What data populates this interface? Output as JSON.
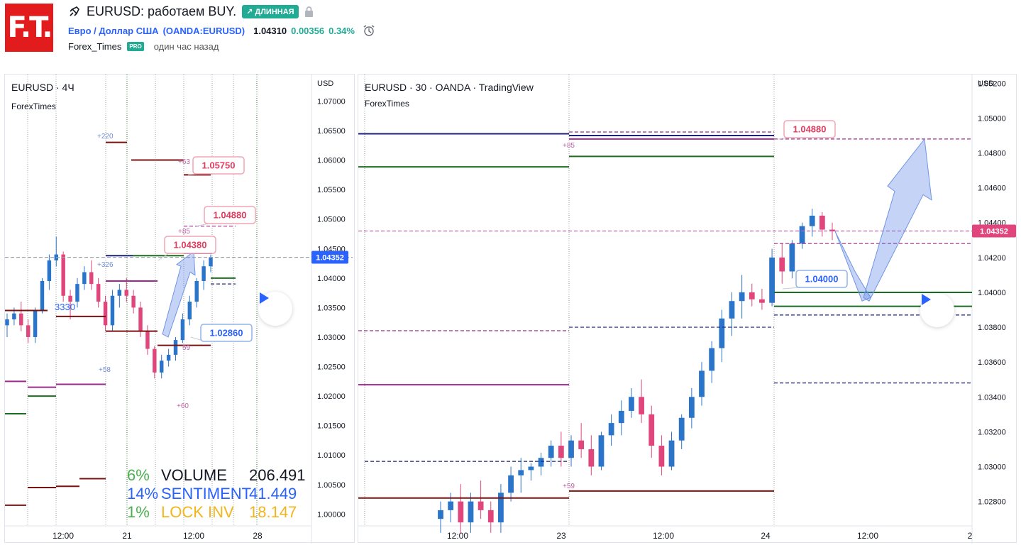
{
  "header": {
    "logo_text": "F.T.",
    "title": "EURUSD: работаем BUY.",
    "direction_badge": "↗ ДЛИННАЯ",
    "symbol_desc": "Евро / Доллар США",
    "symbol_code": "(OANDA:EURUSD)",
    "last_price": "1.04310",
    "change_abs": "0.00356",
    "change_pct": "0.34%",
    "author": "Forex_Times",
    "author_badge": "PRO",
    "published": "один час назад"
  },
  "colors": {
    "up": "#2a74c9",
    "down": "#e0457b",
    "accent_green": "#22ab94",
    "level_navy": "#1a237e",
    "level_green": "#1b6e20",
    "level_maroon": "#7a1010",
    "level_purple": "#9c2a8a",
    "label_red": "#e03d5f",
    "label_blue": "#2962ff",
    "price_tag": "#2962ff",
    "price_tag_right": "#e0457b"
  },
  "left_chart": {
    "title": "EURUSD · 4Ч",
    "subtitle": "ForexTimes",
    "currency": "USD",
    "price_axis": [
      "1.07000",
      "1.06500",
      "1.06000",
      "1.05500",
      "1.05000",
      "1.04500",
      "1.04000",
      "1.03500",
      "1.03000",
      "1.02500",
      "1.02000",
      "1.01500",
      "1.01000",
      "1.00500",
      "1.00000"
    ],
    "time_axis": [
      "12:00",
      "21",
      "12:00",
      "28"
    ],
    "current_price_tag": "1.04352",
    "price_labels": [
      "1.05750",
      "1.04880",
      "1.04380",
      "1.02860"
    ],
    "small_labels": [
      "+220",
      "+63",
      "+85",
      "+326",
      "+58",
      "59",
      "+60",
      "3330"
    ],
    "stats": [
      {
        "pct": "6%",
        "name": "VOLUME",
        "value": "206.491",
        "color": "#4caf50",
        "name_color": "#131722",
        "value_color": "#131722"
      },
      {
        "pct": "14%",
        "name": "SENTIMENT",
        "value": "41.449",
        "color": "#2962ff",
        "name_color": "#2962ff",
        "value_color": "#2962ff"
      },
      {
        "pct": "1%",
        "name": "LOCK INV",
        "value": "18.147",
        "color": "#4caf50",
        "name_color": "#f2b51b",
        "value_color": "#f2b51b"
      }
    ]
  },
  "right_chart": {
    "title": "EURUSD · 30 · OANDA · TradingView",
    "subtitle": "ForexTimes",
    "currency": "USD",
    "price_axis": [
      "1.05200",
      "1.05000",
      "1.04800",
      "1.04600",
      "1.04400",
      "1.04200",
      "1.04000",
      "1.03800",
      "1.03600",
      "1.03400",
      "1.03200",
      "1.03000",
      "1.02800"
    ],
    "time_axis": [
      "12:00",
      "23",
      "12:00",
      "24",
      "12:00",
      "2"
    ],
    "current_price_tag": "1.04352",
    "price_labels": [
      "1.04880",
      "1.04000"
    ],
    "small_labels": [
      "+85",
      "+59"
    ]
  },
  "chart_data": [
    {
      "type": "candlestick",
      "title": "EURUSD · 4Ч",
      "ylim": [
        0.998,
        1.0745
      ],
      "x_ticks": [
        "12:00",
        "21",
        "12:00",
        "28"
      ],
      "levels": [
        1.0575,
        1.0488,
        1.0438,
        1.0286,
        1.04352
      ],
      "ohlc": [
        [
          1.032,
          1.034,
          1.03,
          1.033
        ],
        [
          1.033,
          1.035,
          1.032,
          1.034
        ],
        [
          1.034,
          1.036,
          1.031,
          1.032
        ],
        [
          1.032,
          1.033,
          1.029,
          1.03
        ],
        [
          1.03,
          1.035,
          1.029,
          1.0345
        ],
        [
          1.0345,
          1.04,
          1.034,
          1.0395
        ],
        [
          1.0395,
          1.044,
          1.038,
          1.043
        ],
        [
          1.043,
          1.047,
          1.042,
          1.044
        ],
        [
          1.044,
          1.0445,
          1.036,
          1.037
        ],
        [
          1.037,
          1.038,
          1.033,
          1.036
        ],
        [
          1.036,
          1.04,
          1.035,
          1.039
        ],
        [
          1.039,
          1.042,
          1.038,
          1.041
        ],
        [
          1.041,
          1.043,
          1.038,
          1.039
        ],
        [
          1.039,
          1.04,
          1.035,
          1.036
        ],
        [
          1.036,
          1.037,
          1.031,
          1.032
        ],
        [
          1.032,
          1.038,
          1.031,
          1.037
        ],
        [
          1.037,
          1.039,
          1.035,
          1.038
        ],
        [
          1.038,
          1.04,
          1.036,
          1.037
        ],
        [
          1.037,
          1.038,
          1.034,
          1.035
        ],
        [
          1.035,
          1.036,
          1.03,
          1.031
        ],
        [
          1.031,
          1.032,
          1.027,
          1.028
        ],
        [
          1.028,
          1.0285,
          1.023,
          1.024
        ],
        [
          1.024,
          1.027,
          1.023,
          1.026
        ],
        [
          1.026,
          1.028,
          1.025,
          1.027
        ],
        [
          1.027,
          1.03,
          1.026,
          1.0295
        ],
        [
          1.0295,
          1.034,
          1.029,
          1.033
        ],
        [
          1.033,
          1.037,
          1.032,
          1.036
        ],
        [
          1.036,
          1.04,
          1.035,
          1.0395
        ],
        [
          1.0395,
          1.043,
          1.038,
          1.042
        ],
        [
          1.042,
          1.044,
          1.041,
          1.0435
        ]
      ]
    },
    {
      "type": "candlestick",
      "title": "EURUSD · 30 · OANDA · TradingView",
      "ylim": [
        1.0266,
        1.0525
      ],
      "x_ticks": [
        "12:00",
        "23",
        "12:00",
        "24",
        "12:00",
        "2"
      ],
      "levels": [
        1.0488,
        1.04,
        1.04352
      ],
      "ohlc": [
        [
          1.027,
          1.028,
          1.0262,
          1.0275
        ],
        [
          1.0275,
          1.0285,
          1.0268,
          1.028
        ],
        [
          1.028,
          1.029,
          1.0262,
          1.0268
        ],
        [
          1.0268,
          1.0285,
          1.0262,
          1.028
        ],
        [
          1.028,
          1.0292,
          1.027,
          1.0275
        ],
        [
          1.0275,
          1.028,
          1.0262,
          1.0268
        ],
        [
          1.0268,
          1.029,
          1.0262,
          1.0285
        ],
        [
          1.0285,
          1.03,
          1.028,
          1.0295
        ],
        [
          1.0295,
          1.0305,
          1.0285,
          1.0298
        ],
        [
          1.0298,
          1.0302,
          1.0292,
          1.03
        ],
        [
          1.03,
          1.0308,
          1.0295,
          1.0305
        ],
        [
          1.0305,
          1.0315,
          1.03,
          1.0312
        ],
        [
          1.0312,
          1.032,
          1.03,
          1.0305
        ],
        [
          1.0305,
          1.0318,
          1.03,
          1.0315
        ],
        [
          1.0315,
          1.0325,
          1.0305,
          1.031
        ],
        [
          1.031,
          1.0318,
          1.0295,
          1.03
        ],
        [
          1.03,
          1.032,
          1.0298,
          1.0318
        ],
        [
          1.0318,
          1.033,
          1.0312,
          1.0325
        ],
        [
          1.0325,
          1.0338,
          1.0318,
          1.0332
        ],
        [
          1.0332,
          1.0345,
          1.0328,
          1.034
        ],
        [
          1.034,
          1.035,
          1.0325,
          1.033
        ],
        [
          1.033,
          1.0335,
          1.0305,
          1.0312
        ],
        [
          1.0312,
          1.0318,
          1.0295,
          1.03
        ],
        [
          1.03,
          1.032,
          1.0298,
          1.0315
        ],
        [
          1.0315,
          1.033,
          1.031,
          1.0328
        ],
        [
          1.0328,
          1.0345,
          1.0322,
          1.034
        ],
        [
          1.034,
          1.036,
          1.0335,
          1.0355
        ],
        [
          1.0355,
          1.0372,
          1.0348,
          1.0368
        ],
        [
          1.0368,
          1.039,
          1.036,
          1.0385
        ],
        [
          1.0385,
          1.04,
          1.0375,
          1.0395
        ],
        [
          1.0395,
          1.041,
          1.0385,
          1.04
        ],
        [
          1.04,
          1.0405,
          1.0392,
          1.0396
        ],
        [
          1.0396,
          1.0402,
          1.039,
          1.0394
        ],
        [
          1.0394,
          1.0425,
          1.0392,
          1.042
        ],
        [
          1.042,
          1.0428,
          1.0405,
          1.0412
        ],
        [
          1.0412,
          1.043,
          1.0408,
          1.0428
        ],
        [
          1.0428,
          1.044,
          1.0425,
          1.0438
        ],
        [
          1.0438,
          1.0448,
          1.0432,
          1.0444
        ],
        [
          1.0444,
          1.0446,
          1.0432,
          1.0436
        ],
        [
          1.0436,
          1.044,
          1.043,
          1.0435
        ]
      ]
    }
  ]
}
